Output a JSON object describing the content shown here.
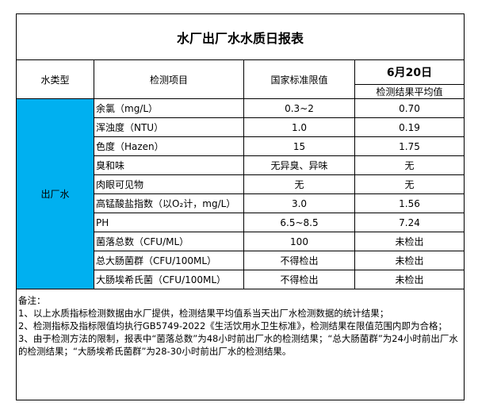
{
  "title": "水厂出厂水水质日报表",
  "headers": {
    "water_type": "水类型",
    "item": "检测项目",
    "standard": "国家标准限值",
    "date": "6月20日",
    "result": "检测结果平均值"
  },
  "water_type_value": "出厂水",
  "rows": [
    {
      "item": "余氯（mg/L）",
      "standard": "0.3~2",
      "result": "0.70"
    },
    {
      "item": "浑浊度（NTU）",
      "standard": "1.0",
      "result": "0.19"
    },
    {
      "item": "色度（Hazen）",
      "standard": "15",
      "result": "1.75"
    },
    {
      "item": "臭和味",
      "standard": "无异臭、异味",
      "result": "无"
    },
    {
      "item": "肉眼可见物",
      "standard": "无",
      "result": "无"
    },
    {
      "item": "高锰酸盐指数（以O₂计，mg/L）",
      "standard": "3.0",
      "result": "1.56"
    },
    {
      "item": "PH",
      "standard": "6.5~8.5",
      "result": "7.24"
    },
    {
      "item": "菌落总数（CFU/ML）",
      "standard": "100",
      "result": "未检出"
    },
    {
      "item": "总大肠菌群（CFU/100ML）",
      "standard": "不得检出",
      "result": "未检出"
    },
    {
      "item": "大肠埃希氏菌（CFU/100ML）",
      "standard": "不得检出",
      "result": "未检出"
    }
  ],
  "notes": {
    "heading": "备注：",
    "lines": [
      "1、以上水质指标检测数据由水厂提供，检测结果平均值系当天出厂水检测数据的统计结果；",
      "2、检测指标及指标限值均执行GB5749-2022《生活饮用水卫生标准》，检测结果在限值范围内即为合格；",
      "3、由于检测方法的限制，报表中“菌落总数”为48小时前出厂水的检测结果；“总大肠菌群”为24小时前出厂水的检测结果；“大肠埃希氏菌群”为28-30小时前出厂水的检测结果。"
    ]
  },
  "colors": {
    "water_type_cell": "#00b0f0"
  }
}
